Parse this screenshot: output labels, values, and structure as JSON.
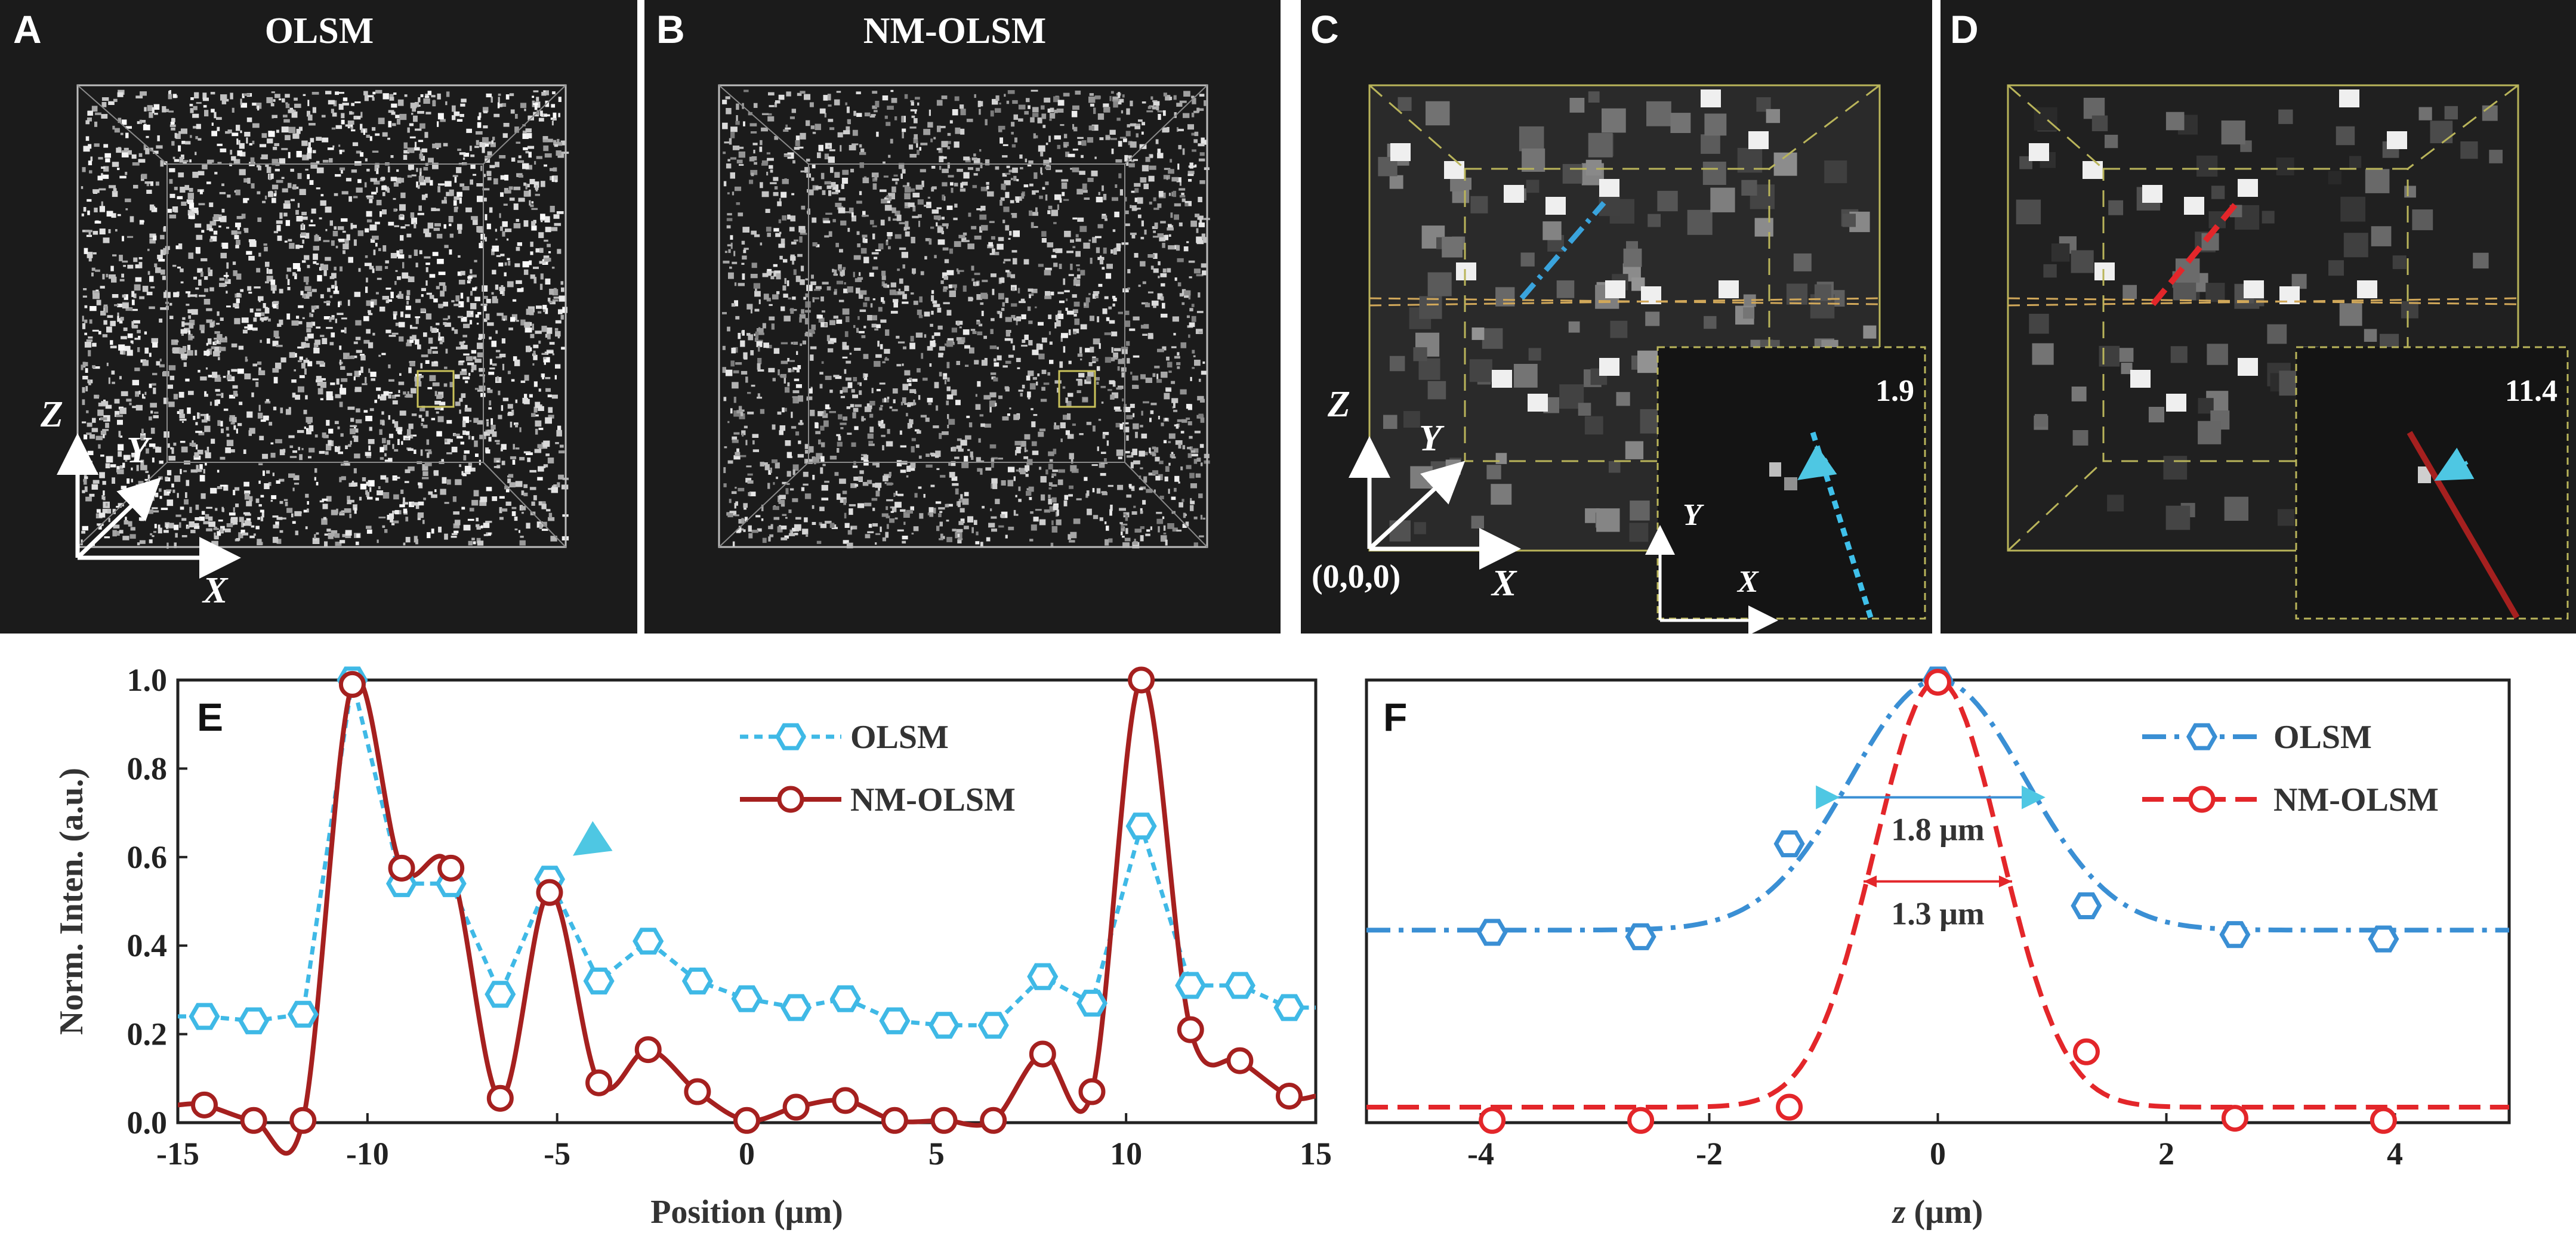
{
  "colors": {
    "panel_bg": "#1a1a1a",
    "olsm_light_blue": "#3fb9e6",
    "nm_dark_red": "#a5201f",
    "olsm_blue_f": "#3a8fd4",
    "nm_red_f": "#e3262a",
    "box_yellow": "#b9b45a",
    "arrow_cyan": "#4ec7e3"
  },
  "panels": {
    "A": {
      "letter": "A",
      "title": "OLSM",
      "axis_z": "Z",
      "axis_y": "Y",
      "axis_x": "X"
    },
    "B": {
      "letter": "B",
      "title": "NM-OLSM"
    },
    "C": {
      "letter": "C",
      "axis_z": "Z",
      "axis_y": "Y",
      "axis_x": "X",
      "origin": "(0,0,0)",
      "inset_value": "1.9",
      "inset_y": "Y",
      "inset_x": "X"
    },
    "D": {
      "letter": "D",
      "inset_value": "11.4"
    }
  },
  "chart_data": [
    {
      "id": "E",
      "type": "line",
      "panel_letter": "E",
      "xlabel": "Position (μm)",
      "ylabel": "Norm. Inten. (a.u.)",
      "xlim": [
        -15,
        15
      ],
      "ylim": [
        0,
        1
      ],
      "xticks": [
        -15,
        -10,
        -5,
        0,
        5,
        10,
        15
      ],
      "yticks": [
        0.0,
        0.2,
        0.4,
        0.6,
        0.8,
        1.0
      ],
      "xtick_labels": [
        "-15",
        "-10",
        "-5",
        "0",
        "5",
        "10",
        "15"
      ],
      "ytick_labels": [
        "0.0",
        "0.2",
        "0.4",
        "0.6",
        "0.8",
        "1.0"
      ],
      "legend_position": "top-right",
      "series": [
        {
          "name": "OLSM",
          "style": "dotted-hexagon",
          "x": [
            -14.3,
            -13.0,
            -11.7,
            -10.4,
            -9.1,
            -7.8,
            -6.5,
            -5.2,
            -3.9,
            -2.6,
            -1.3,
            0.0,
            1.3,
            2.6,
            3.9,
            5.2,
            6.5,
            7.8,
            9.1,
            10.4,
            11.7,
            13.0,
            14.3
          ],
          "values": [
            0.24,
            0.23,
            0.245,
            1.0,
            0.54,
            0.54,
            0.29,
            0.55,
            0.32,
            0.41,
            0.32,
            0.28,
            0.26,
            0.28,
            0.23,
            0.22,
            0.22,
            0.33,
            0.27,
            0.67,
            0.31,
            0.31,
            0.26
          ]
        },
        {
          "name": "NM-OLSM",
          "style": "solid-circle",
          "x": [
            -14.3,
            -13.0,
            -11.7,
            -10.4,
            -9.1,
            -7.8,
            -6.5,
            -5.2,
            -3.9,
            -2.6,
            -1.3,
            0.0,
            1.3,
            2.6,
            3.9,
            5.2,
            6.5,
            7.8,
            9.1,
            10.4,
            11.7,
            13.0,
            14.3
          ],
          "values": [
            0.04,
            0.005,
            0.005,
            0.99,
            0.575,
            0.575,
            0.055,
            0.52,
            0.09,
            0.165,
            0.07,
            0.005,
            0.035,
            0.05,
            0.005,
            0.005,
            0.005,
            0.155,
            0.07,
            1.0,
            0.21,
            0.14,
            0.06
          ]
        }
      ]
    },
    {
      "id": "F",
      "type": "line",
      "panel_letter": "F",
      "xlabel_italic": "z",
      "xlabel_rest": " (μm)",
      "xlim": [
        -5,
        5
      ],
      "ylim": [
        0,
        1
      ],
      "xticks": [
        -4,
        -2,
        0,
        2,
        4
      ],
      "xtick_labels": [
        "-4",
        "-2",
        "0",
        "2",
        "4"
      ],
      "legend_position": "top-right",
      "annotations": [
        "1.8 μm",
        "1.3 μm"
      ],
      "fwhm": [
        1.8,
        1.3
      ],
      "series": [
        {
          "name": "OLSM",
          "style": "dash-dot-hexagon",
          "baseline": 0.435,
          "fwhm": 1.8,
          "x": [
            -3.9,
            -2.6,
            -1.3,
            0.0,
            1.3,
            2.6,
            3.9
          ],
          "values": [
            0.43,
            0.42,
            0.63,
            1.0,
            0.49,
            0.425,
            0.415
          ]
        },
        {
          "name": "NM-OLSM",
          "style": "dashed-circle",
          "baseline": 0.035,
          "fwhm": 1.3,
          "x": [
            -3.9,
            -2.6,
            -1.3,
            0.0,
            1.3,
            2.6,
            3.9
          ],
          "values": [
            0.005,
            0.005,
            0.035,
            0.995,
            0.16,
            0.01,
            0.005
          ]
        }
      ]
    }
  ]
}
